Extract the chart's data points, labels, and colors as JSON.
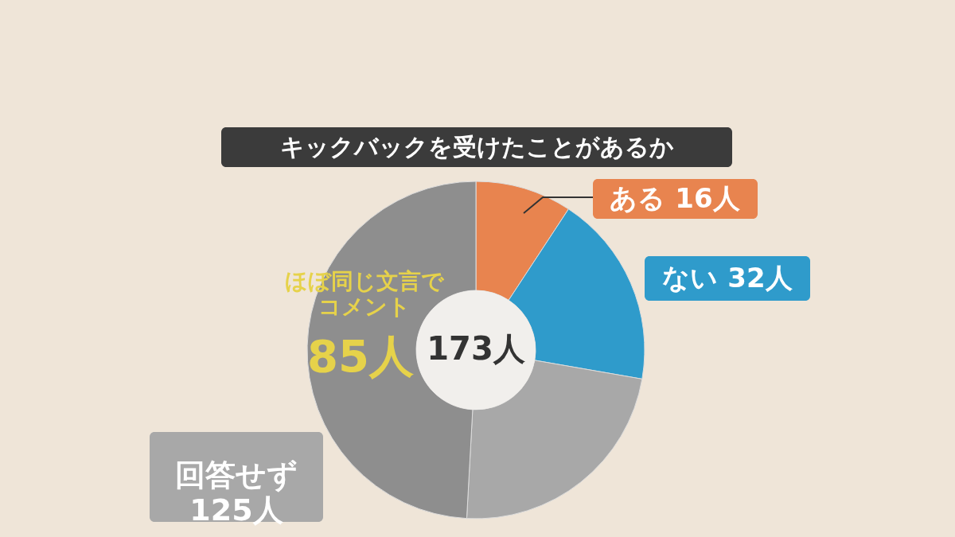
{
  "chart_data": {
    "type": "donut",
    "title": "キックバックを受けたことがあるか",
    "categories": [
      "ある",
      "ない",
      null,
      "ほぼ同じ文言でコメント"
    ],
    "values": [
      16,
      32,
      40,
      85
    ],
    "colors": [
      "#e8844f",
      "#2f9bcb",
      "#a8a8a8",
      "#8e8e8e"
    ],
    "value_labels": [
      "16人",
      "32人",
      null,
      "85人"
    ],
    "annotations": [
      "173人",
      "回答せず\n125人"
    ]
  }
}
